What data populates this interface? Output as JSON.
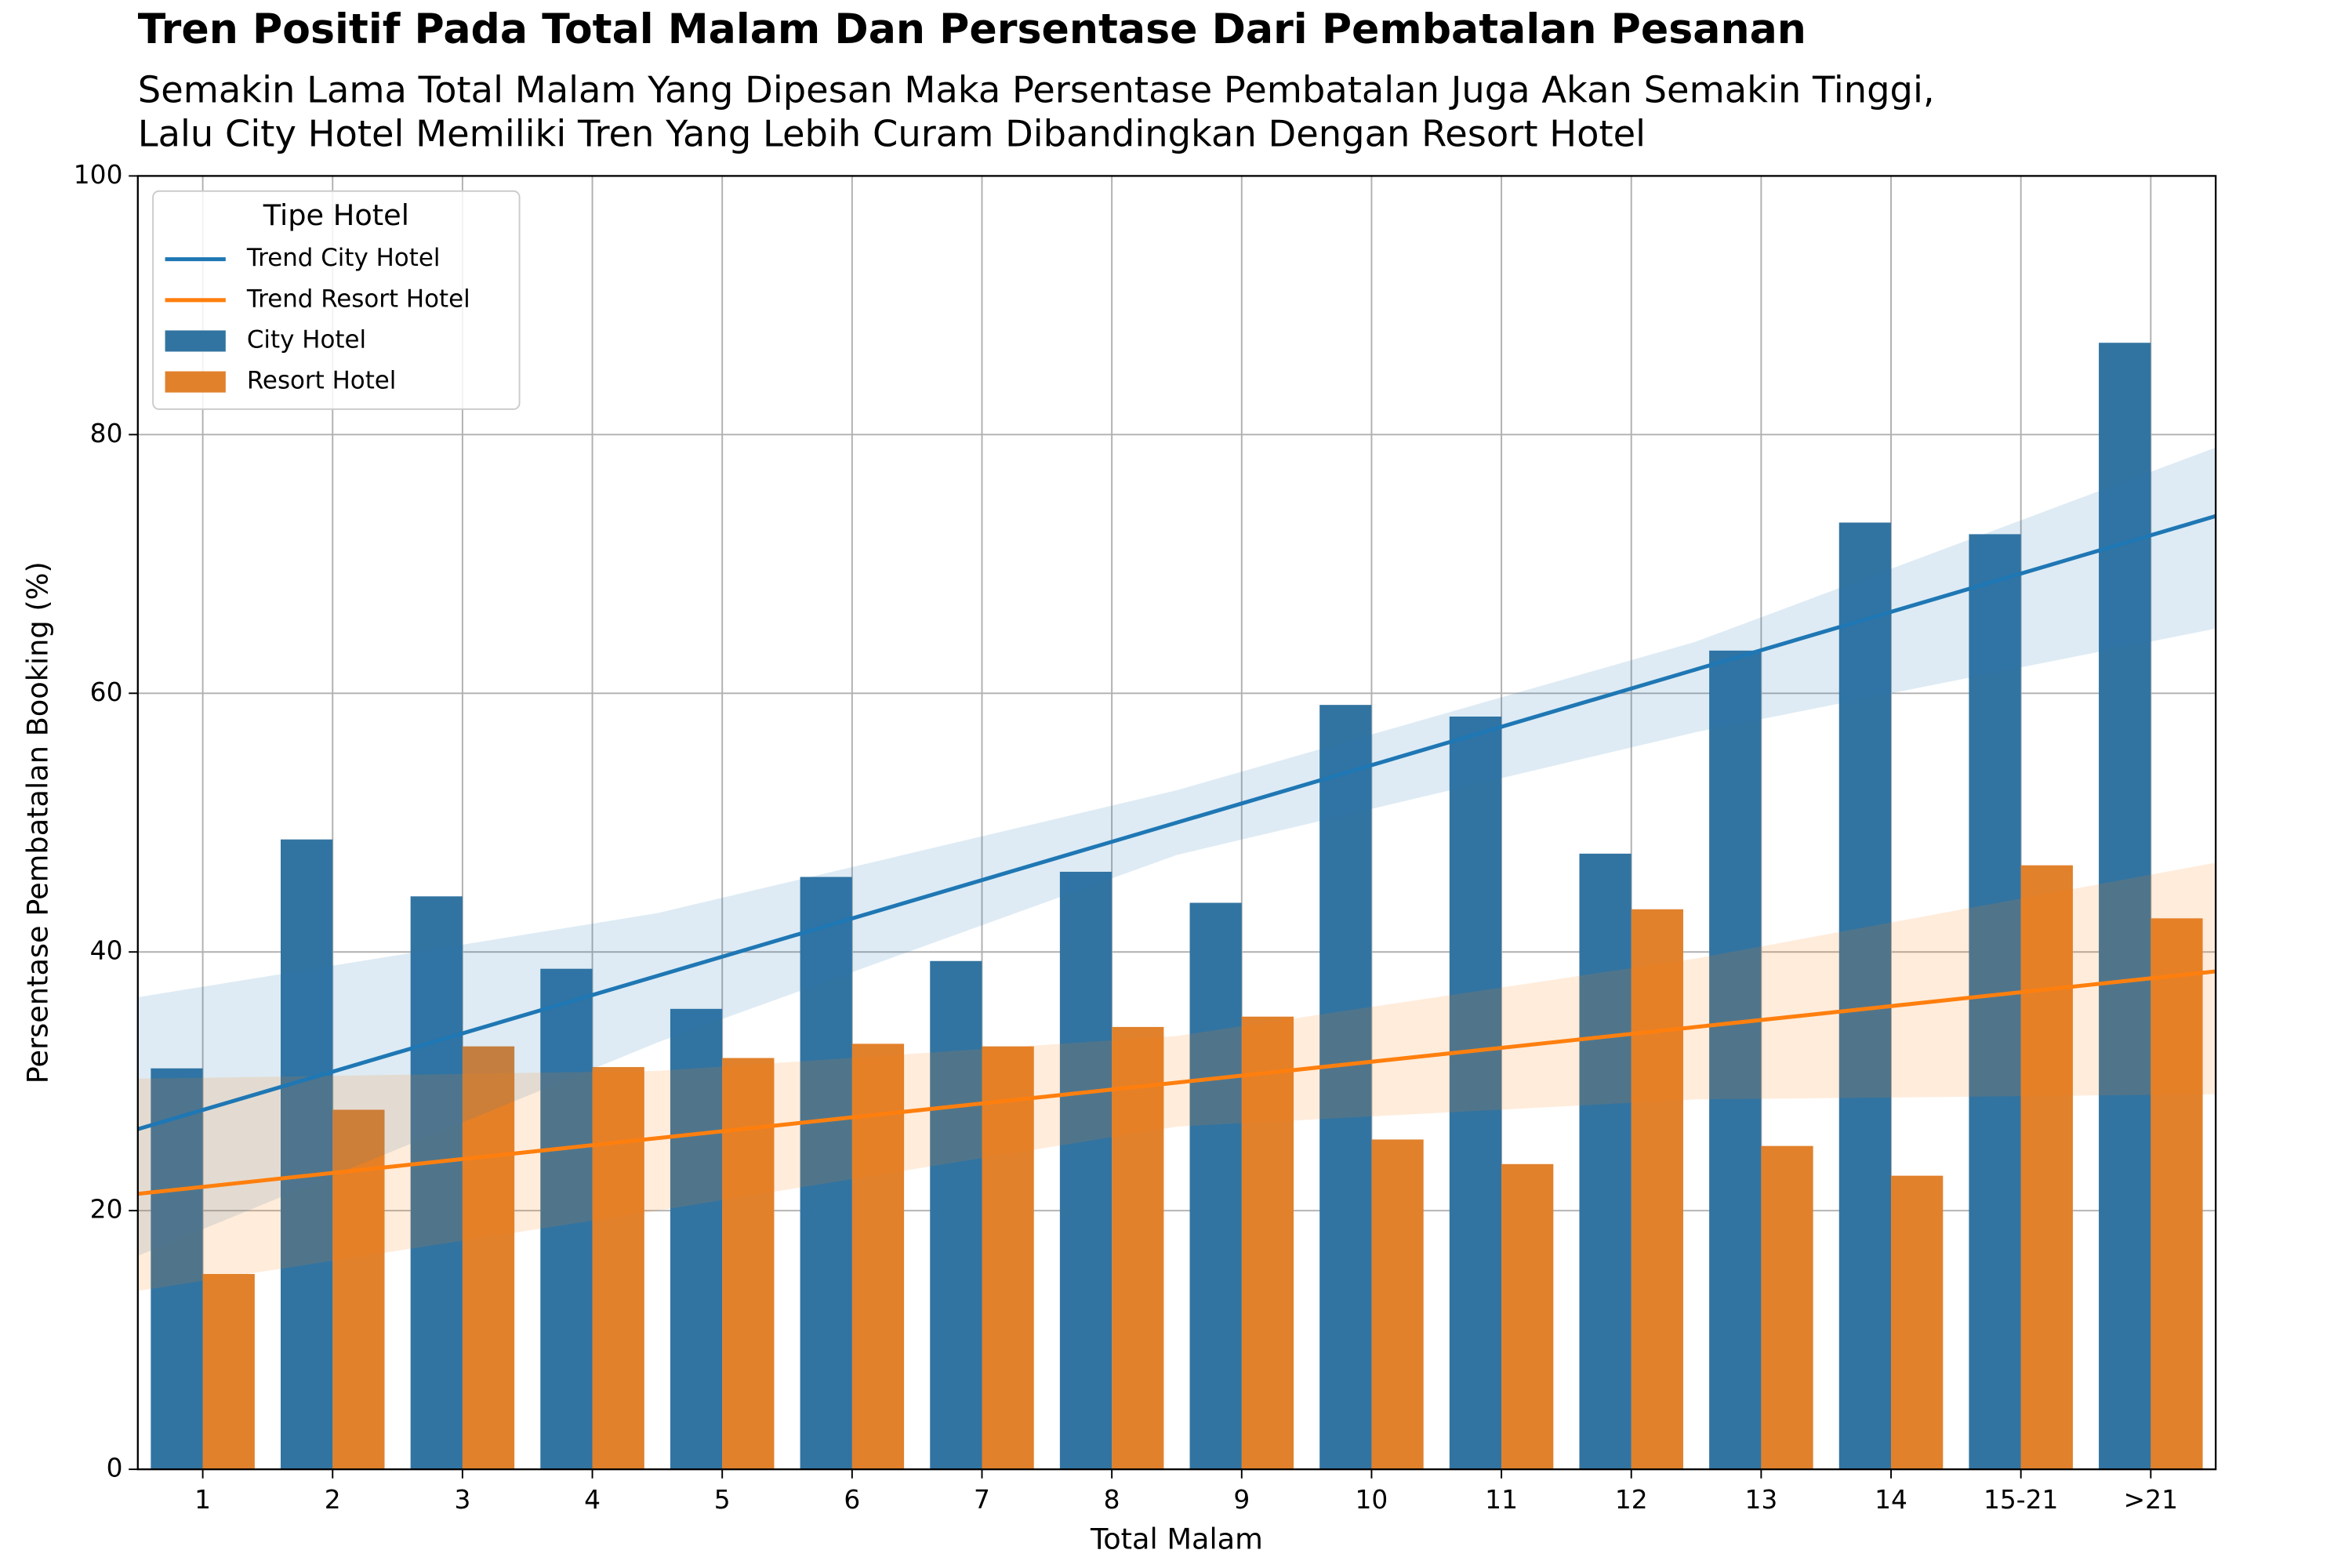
{
  "chart_data": {
    "type": "bar",
    "title": "Tren Positif Pada Total Malam Dan Persentase Dari Pembatalan Pesanan",
    "subtitle": [
      "Semakin Lama Total Malam Yang Dipesan Maka Persentase Pembatalan Juga Akan Semakin Tinggi,",
      "Lalu City Hotel Memiliki Tren Yang Lebih Curam Dibandingkan Dengan Resort Hotel"
    ],
    "x_label": "Total Malam",
    "y_label": "Persentase Pembatalan Booking (%)",
    "categories": [
      "1",
      "2",
      "3",
      "4",
      "5",
      "6",
      "7",
      "8",
      "9",
      "10",
      "11",
      "12",
      "13",
      "14",
      "15-21",
      ">21"
    ],
    "series": [
      {
        "name": "City Hotel",
        "color": "#3274a1",
        "values": [
          31,
          48.7,
          44.3,
          38.7,
          35.6,
          45.8,
          39.3,
          46.2,
          43.8,
          59.1,
          58.2,
          47.6,
          63.3,
          73.2,
          72.3,
          87.1
        ]
      },
      {
        "name": "Resort Hotel",
        "color": "#e1812c",
        "values": [
          15.1,
          27.8,
          32.7,
          31.1,
          31.8,
          32.9,
          32.7,
          34.2,
          35,
          25.5,
          23.6,
          43.3,
          25,
          22.7,
          46.7,
          42.6
        ]
      }
    ],
    "trend_lines": [
      {
        "name": "Trend City Hotel",
        "color": "#1f77b4",
        "x": [
          -0.5,
          3.5,
          7.5,
          11.5,
          15.5
        ],
        "values": [
          26.3,
          38.15,
          50,
          61.85,
          73.7
        ],
        "lower": [
          16.5,
          33,
          47.5,
          57,
          65
        ],
        "upper": [
          36.5,
          43,
          52.5,
          64,
          79
        ]
      },
      {
        "name": "Trend Resort Hotel",
        "color": "#ff7f0e",
        "x": [
          -0.5,
          3.5,
          7.5,
          11.5,
          15.5
        ],
        "values": [
          21.3,
          25.6,
          29.9,
          34.2,
          38.5
        ],
        "lower": [
          13.8,
          20,
          26.5,
          28.6,
          29
        ],
        "upper": [
          30.2,
          30.8,
          33.5,
          39.5,
          46.9
        ]
      }
    ],
    "legend_title": "Tipe Hotel",
    "legend_position": "upper left",
    "ylim": [
      0,
      100
    ],
    "yticks": [
      0,
      20,
      40,
      60,
      80,
      100
    ],
    "grid": true
  }
}
